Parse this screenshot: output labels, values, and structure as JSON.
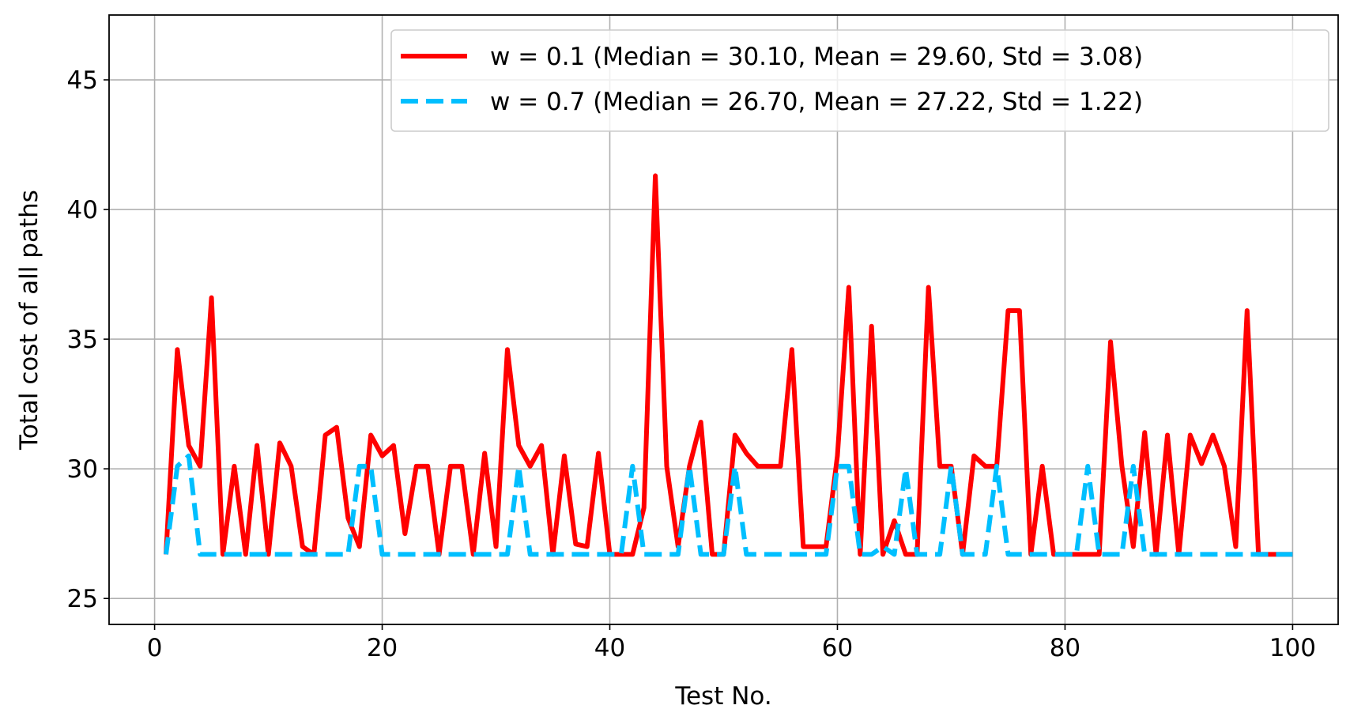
{
  "chart_data": {
    "type": "line",
    "title": "",
    "xlabel": "Test No.",
    "ylabel": "Total cost of all paths",
    "xlim": [
      -4,
      104
    ],
    "ylim": [
      24,
      47.5
    ],
    "xticks": [
      0,
      20,
      40,
      60,
      80,
      100
    ],
    "yticks": [
      25,
      30,
      35,
      40,
      45
    ],
    "grid": true,
    "legend_position": "top-right",
    "x": [
      1,
      2,
      3,
      4,
      5,
      6,
      7,
      8,
      9,
      10,
      11,
      12,
      13,
      14,
      15,
      16,
      17,
      18,
      19,
      20,
      21,
      22,
      23,
      24,
      25,
      26,
      27,
      28,
      29,
      30,
      31,
      32,
      33,
      34,
      35,
      36,
      37,
      38,
      39,
      40,
      41,
      42,
      43,
      44,
      45,
      46,
      47,
      48,
      49,
      50,
      51,
      52,
      53,
      54,
      55,
      56,
      57,
      58,
      59,
      60,
      61,
      62,
      63,
      64,
      65,
      66,
      67,
      68,
      69,
      70,
      71,
      72,
      73,
      74,
      75,
      76,
      77,
      78,
      79,
      80,
      81,
      82,
      83,
      84,
      85,
      86,
      87,
      88,
      89,
      90,
      91,
      92,
      93,
      94,
      95,
      96,
      97,
      98,
      99,
      100
    ],
    "series": [
      {
        "name": "w = 0.1 (Median = 30.10, Mean = 29.60, Std = 3.08)",
        "color": "#ff0000",
        "style": "solid",
        "values": [
          26.7,
          34.6,
          30.9,
          30.1,
          36.6,
          26.7,
          30.1,
          26.7,
          30.9,
          26.7,
          31.0,
          30.1,
          27.0,
          26.7,
          31.3,
          31.6,
          28.1,
          27.0,
          31.3,
          30.5,
          30.9,
          27.5,
          30.1,
          30.1,
          26.7,
          30.1,
          30.1,
          26.7,
          30.6,
          27.0,
          34.6,
          30.9,
          30.1,
          30.9,
          26.7,
          30.5,
          27.1,
          27.0,
          30.6,
          26.7,
          26.7,
          26.7,
          28.5,
          41.3,
          30.1,
          27.0,
          30.1,
          31.8,
          26.7,
          26.7,
          31.3,
          30.6,
          30.1,
          30.1,
          30.1,
          34.6,
          27.0,
          27.0,
          27.0,
          30.5,
          37.0,
          26.7,
          35.5,
          26.7,
          28.0,
          26.7,
          26.7,
          37.0,
          30.1,
          30.1,
          26.7,
          30.5,
          30.1,
          30.1,
          36.1,
          36.1,
          26.7,
          30.1,
          26.7,
          26.7,
          26.7,
          26.7,
          26.7,
          34.9,
          30.1,
          27.0,
          31.4,
          26.7,
          31.3,
          26.7,
          31.3,
          30.2,
          31.3,
          30.1,
          27.0,
          36.1,
          26.7,
          26.7,
          26.7,
          26.7
        ]
      },
      {
        "name": "w = 0.7 (Median = 26.70, Mean = 27.22, Std = 1.22)",
        "color": "#00bfff",
        "style": "dashed",
        "values": [
          26.7,
          30.1,
          30.5,
          26.7,
          26.7,
          26.7,
          26.7,
          26.7,
          26.7,
          26.7,
          26.7,
          26.7,
          26.7,
          26.7,
          26.7,
          26.7,
          26.7,
          30.1,
          30.1,
          26.7,
          26.7,
          26.7,
          26.7,
          26.7,
          26.7,
          26.7,
          26.7,
          26.7,
          26.7,
          26.7,
          26.7,
          30.1,
          26.7,
          26.7,
          26.7,
          26.7,
          26.7,
          26.7,
          26.7,
          26.7,
          26.7,
          30.1,
          26.7,
          26.7,
          26.7,
          26.7,
          30.1,
          26.7,
          26.7,
          26.7,
          30.1,
          26.7,
          26.7,
          26.7,
          26.7,
          26.7,
          26.7,
          26.7,
          26.7,
          30.1,
          30.1,
          26.7,
          26.7,
          27.0,
          26.7,
          30.0,
          26.7,
          26.7,
          26.7,
          30.1,
          26.7,
          26.7,
          26.7,
          30.1,
          26.7,
          26.7,
          26.7,
          26.7,
          26.7,
          26.7,
          26.7,
          30.1,
          26.7,
          26.7,
          26.7,
          30.1,
          26.7,
          26.7,
          26.7,
          26.7,
          26.7,
          26.7,
          26.7,
          26.7,
          26.7,
          26.7,
          26.7,
          26.7,
          26.7,
          26.7
        ]
      }
    ]
  }
}
